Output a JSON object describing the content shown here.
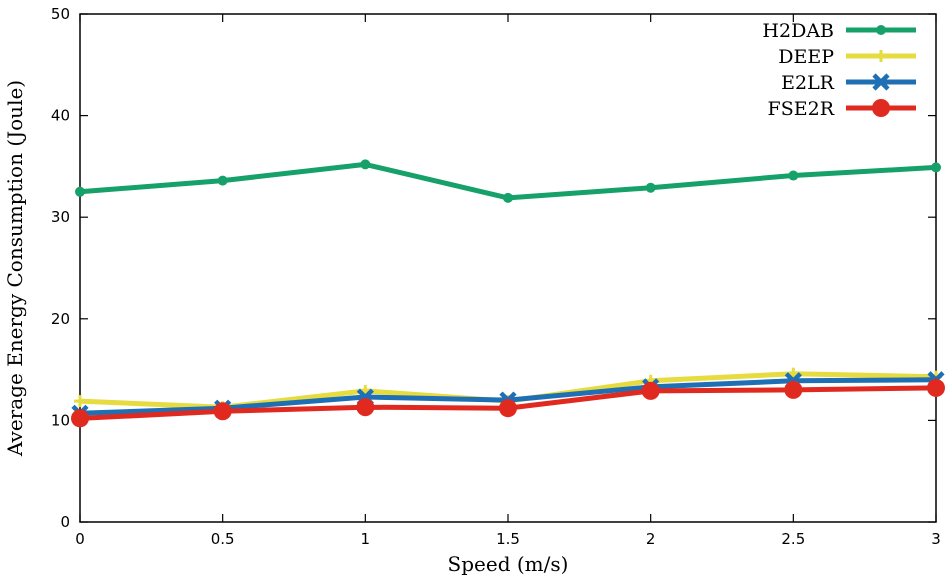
{
  "chart_data": {
    "type": "line",
    "title": "",
    "xlabel": "Speed (m/s)",
    "ylabel": "Average Energy Consumption (Joule)",
    "xlim": [
      0,
      3
    ],
    "ylim": [
      0,
      50
    ],
    "x": [
      0,
      0.5,
      1,
      1.5,
      2,
      2.5,
      3
    ],
    "x_tick_labels": [
      "0",
      "0.5",
      "1",
      "1.5",
      "2",
      "2.5",
      "3"
    ],
    "y_ticks": [
      0,
      10,
      20,
      30,
      40,
      50
    ],
    "y_tick_labels": [
      "0",
      "10",
      "20",
      "30",
      "40",
      "50"
    ],
    "grid": false,
    "legend_position": "top-right",
    "series": [
      {
        "name": "H2DAB",
        "color": "#16a06a",
        "marker": "dot",
        "values": [
          32.5,
          33.6,
          35.2,
          31.9,
          32.9,
          34.1,
          34.9
        ]
      },
      {
        "name": "DEEP",
        "color": "#e6dc40",
        "marker": "plus",
        "values": [
          11.9,
          11.3,
          12.9,
          11.9,
          13.9,
          14.6,
          14.3
        ]
      },
      {
        "name": "E2LR",
        "color": "#1f6fb4",
        "marker": "cross",
        "values": [
          10.7,
          11.2,
          12.3,
          12.0,
          13.3,
          13.9,
          14.0
        ]
      },
      {
        "name": "FSE2R",
        "color": "#e02a20",
        "marker": "circle",
        "values": [
          10.2,
          10.9,
          11.3,
          11.2,
          12.9,
          13.0,
          13.2
        ]
      }
    ]
  }
}
